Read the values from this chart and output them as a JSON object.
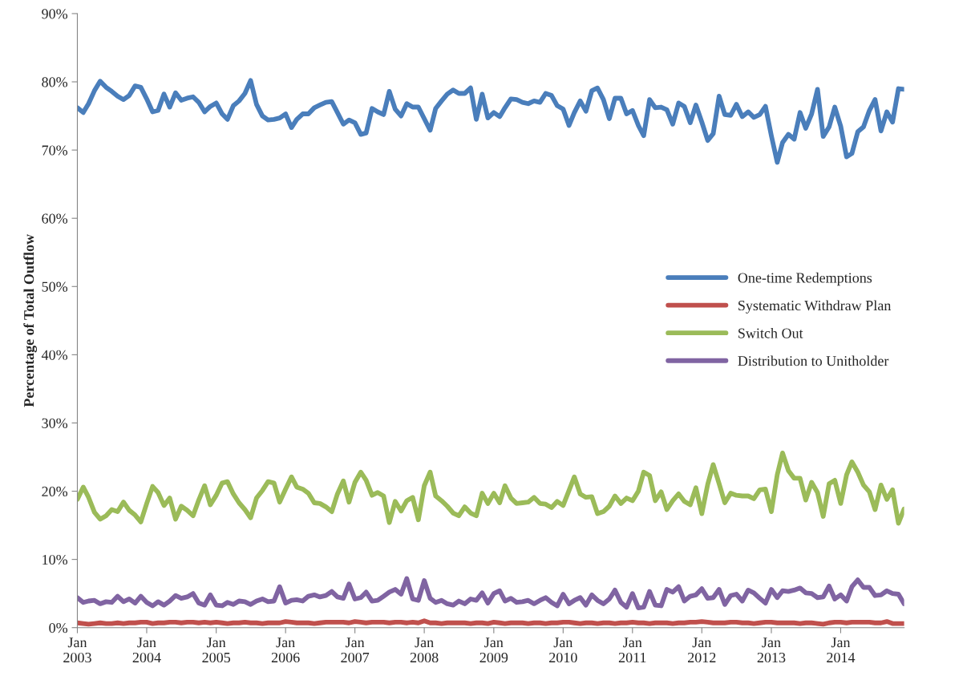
{
  "chart_data": {
    "type": "line",
    "ylabel": "Percentage of Total Outflow",
    "x": [
      "2003-01",
      "2003-02",
      "2003-03",
      "2003-04",
      "2003-05",
      "2003-06",
      "2003-07",
      "2003-08",
      "2003-09",
      "2003-10",
      "2003-11",
      "2003-12",
      "2004-01",
      "2004-02",
      "2004-03",
      "2004-04",
      "2004-05",
      "2004-06",
      "2004-07",
      "2004-08",
      "2004-09",
      "2004-10",
      "2004-11",
      "2004-12",
      "2005-01",
      "2005-02",
      "2005-03",
      "2005-04",
      "2005-05",
      "2005-06",
      "2005-07",
      "2005-08",
      "2005-09",
      "2005-10",
      "2005-11",
      "2005-12",
      "2006-01",
      "2006-02",
      "2006-03",
      "2006-04",
      "2006-05",
      "2006-06",
      "2006-07",
      "2006-08",
      "2006-09",
      "2006-10",
      "2006-11",
      "2006-12",
      "2007-01",
      "2007-02",
      "2007-03",
      "2007-04",
      "2007-05",
      "2007-06",
      "2007-07",
      "2007-08",
      "2007-09",
      "2007-10",
      "2007-11",
      "2007-12",
      "2008-01",
      "2008-02",
      "2008-03",
      "2008-04",
      "2008-05",
      "2008-06",
      "2008-07",
      "2008-08",
      "2008-09",
      "2008-10",
      "2008-11",
      "2008-12",
      "2009-01",
      "2009-02",
      "2009-03",
      "2009-04",
      "2009-05",
      "2009-06",
      "2009-07",
      "2009-08",
      "2009-09",
      "2009-10",
      "2009-11",
      "2009-12",
      "2010-01",
      "2010-02",
      "2010-03",
      "2010-04",
      "2010-05",
      "2010-06",
      "2010-07",
      "2010-08",
      "2010-09",
      "2010-10",
      "2010-11",
      "2010-12",
      "2011-01",
      "2011-02",
      "2011-03",
      "2011-04",
      "2011-05",
      "2011-06",
      "2011-07",
      "2011-08",
      "2011-09",
      "2011-10",
      "2011-11",
      "2011-12",
      "2012-01",
      "2012-02",
      "2012-03",
      "2012-04",
      "2012-05",
      "2012-06",
      "2012-07",
      "2012-08",
      "2012-09",
      "2012-10",
      "2012-11",
      "2012-12",
      "2013-01",
      "2013-02",
      "2013-03",
      "2013-04",
      "2013-05",
      "2013-06",
      "2013-07",
      "2013-08",
      "2013-09",
      "2013-10",
      "2013-11",
      "2013-12",
      "2014-01",
      "2014-02",
      "2014-03",
      "2014-04",
      "2014-05",
      "2014-06",
      "2014-07",
      "2014-08",
      "2014-09",
      "2014-10",
      "2014-11",
      "2014-12"
    ],
    "xlim": [
      "2003-01",
      "2014-12"
    ],
    "xticks": [
      {
        "value": "2003-01",
        "label": "Jan\n2003"
      },
      {
        "value": "2004-01",
        "label": "Jan\n2004"
      },
      {
        "value": "2005-01",
        "label": "Jan\n2005"
      },
      {
        "value": "2006-01",
        "label": "Jan\n2006"
      },
      {
        "value": "2007-01",
        "label": "Jan\n2007"
      },
      {
        "value": "2008-01",
        "label": "Jan\n2008"
      },
      {
        "value": "2009-01",
        "label": "Jan\n2009"
      },
      {
        "value": "2010-01",
        "label": "Jan\n2010"
      },
      {
        "value": "2011-01",
        "label": "Jan\n2011"
      },
      {
        "value": "2012-01",
        "label": "Jan\n2012"
      },
      {
        "value": "2013-01",
        "label": "Jan\n2013"
      },
      {
        "value": "2014-01",
        "label": "Jan\n2014"
      }
    ],
    "ylim": [
      0,
      90
    ],
    "yticks": [
      {
        "value": 0,
        "label": "0%"
      },
      {
        "value": 10,
        "label": "10%"
      },
      {
        "value": 20,
        "label": "20%"
      },
      {
        "value": 30,
        "label": "30%"
      },
      {
        "value": 40,
        "label": "40%"
      },
      {
        "value": 50,
        "label": "50%"
      },
      {
        "value": 60,
        "label": "60%"
      },
      {
        "value": 70,
        "label": "70%"
      },
      {
        "value": 80,
        "label": "80%"
      },
      {
        "value": 90,
        "label": "90%"
      }
    ],
    "grid": false,
    "legend": "right",
    "marker": "none",
    "series": [
      {
        "name": "One-time Redemptions",
        "color": "#4a7ebb",
        "line_style": "solid",
        "values": [
          76.2,
          75.5,
          76.8,
          78.7,
          80.1,
          79.2,
          78.6,
          77.9,
          77.4,
          78.0,
          79.4,
          79.2,
          77.5,
          75.6,
          75.8,
          78.2,
          76.3,
          78.4,
          77.3,
          77.6,
          77.8,
          77.0,
          75.6,
          76.4,
          76.9,
          75.3,
          74.5,
          76.5,
          77.2,
          78.3,
          80.2,
          76.7,
          75.0,
          74.4,
          74.5,
          74.7,
          75.3,
          73.3,
          74.5,
          75.3,
          75.3,
          76.2,
          76.6,
          77.0,
          77.1,
          75.5,
          73.8,
          74.4,
          74.0,
          72.3,
          72.5,
          76.1,
          75.6,
          75.2,
          78.6,
          76.0,
          75.0,
          76.8,
          76.3,
          76.3,
          74.6,
          72.9,
          76.1,
          77.2,
          78.2,
          78.8,
          78.3,
          78.3,
          79.1,
          74.5,
          78.2,
          74.7,
          75.5,
          74.9,
          76.2,
          77.5,
          77.4,
          77.0,
          76.8,
          77.2,
          77.0,
          78.3,
          78.0,
          76.5,
          76.0,
          73.6,
          75.5,
          77.2,
          75.7,
          78.7,
          79.1,
          77.4,
          74.6,
          77.6,
          77.6,
          75.3,
          75.8,
          73.6,
          72.1,
          77.4,
          76.2,
          76.3,
          75.9,
          73.8,
          76.9,
          76.4,
          74.0,
          76.6,
          74.1,
          71.4,
          72.4,
          77.9,
          75.2,
          75.1,
          76.7,
          74.9,
          75.6,
          74.8,
          75.2,
          76.4,
          72.1,
          68.2,
          71.1,
          72.3,
          71.6,
          75.5,
          73.2,
          75.3,
          78.9,
          72.0,
          73.4,
          76.3,
          73.5,
          69.0,
          69.5,
          72.7,
          73.4,
          75.8,
          77.4,
          72.8,
          75.6,
          74.1,
          79.0,
          78.9
        ]
      },
      {
        "name": "Systematic Withdraw Plan",
        "color": "#c0504d",
        "line_style": "solid",
        "values": [
          0.7,
          0.6,
          0.5,
          0.6,
          0.7,
          0.6,
          0.6,
          0.7,
          0.6,
          0.7,
          0.7,
          0.8,
          0.8,
          0.6,
          0.7,
          0.7,
          0.8,
          0.8,
          0.7,
          0.8,
          0.8,
          0.7,
          0.8,
          0.7,
          0.8,
          0.7,
          0.6,
          0.7,
          0.7,
          0.8,
          0.7,
          0.7,
          0.6,
          0.7,
          0.7,
          0.7,
          0.9,
          0.8,
          0.7,
          0.7,
          0.7,
          0.6,
          0.7,
          0.8,
          0.8,
          0.8,
          0.8,
          0.7,
          0.9,
          0.8,
          0.7,
          0.8,
          0.8,
          0.8,
          0.7,
          0.8,
          0.8,
          0.7,
          0.8,
          0.7,
          1.0,
          0.7,
          0.7,
          0.6,
          0.7,
          0.7,
          0.7,
          0.7,
          0.6,
          0.7,
          0.7,
          0.6,
          0.8,
          0.7,
          0.6,
          0.7,
          0.7,
          0.7,
          0.6,
          0.7,
          0.7,
          0.6,
          0.7,
          0.7,
          0.8,
          0.8,
          0.7,
          0.6,
          0.7,
          0.7,
          0.6,
          0.7,
          0.7,
          0.6,
          0.7,
          0.7,
          0.8,
          0.7,
          0.7,
          0.6,
          0.7,
          0.7,
          0.7,
          0.6,
          0.7,
          0.7,
          0.8,
          0.8,
          0.9,
          0.8,
          0.7,
          0.7,
          0.7,
          0.8,
          0.8,
          0.7,
          0.7,
          0.6,
          0.7,
          0.8,
          0.8,
          0.7,
          0.7,
          0.7,
          0.7,
          0.6,
          0.7,
          0.7,
          0.6,
          0.5,
          0.7,
          0.8,
          0.8,
          0.7,
          0.8,
          0.8,
          0.8,
          0.8,
          0.7,
          0.7,
          0.9,
          0.6,
          0.6,
          0.6
        ]
      },
      {
        "name": "Switch Out",
        "color": "#9bbb59",
        "line_style": "solid",
        "values": [
          18.8,
          20.6,
          19.1,
          16.9,
          15.9,
          16.4,
          17.3,
          17.0,
          18.4,
          17.2,
          16.5,
          15.5,
          18.2,
          20.7,
          19.8,
          17.9,
          19.0,
          15.9,
          17.8,
          17.2,
          16.4,
          18.7,
          20.8,
          18.0,
          19.4,
          21.2,
          21.4,
          19.6,
          18.3,
          17.3,
          16.1,
          19.0,
          20.1,
          21.4,
          21.2,
          18.4,
          20.3,
          22.1,
          20.6,
          20.3,
          19.7,
          18.3,
          18.2,
          17.7,
          17.0,
          19.6,
          21.5,
          18.4,
          21.3,
          22.8,
          21.6,
          19.4,
          19.8,
          19.3,
          15.4,
          18.5,
          17.1,
          18.6,
          19.1,
          15.8,
          20.8,
          22.8,
          19.3,
          18.6,
          17.8,
          16.8,
          16.4,
          17.7,
          16.8,
          16.4,
          19.7,
          18.2,
          19.7,
          18.3,
          20.8,
          19.0,
          18.2,
          18.3,
          18.4,
          19.1,
          18.2,
          18.1,
          17.6,
          18.5,
          17.9,
          20.1,
          22.1,
          19.6,
          19.1,
          19.2,
          16.7,
          17.0,
          17.8,
          19.3,
          18.2,
          19.0,
          18.6,
          20.0,
          22.8,
          22.3,
          18.6,
          19.9,
          17.3,
          18.6,
          19.6,
          18.5,
          18.0,
          20.5,
          16.7,
          21.0,
          23.9,
          21.1,
          18.3,
          19.7,
          19.4,
          19.3,
          19.3,
          18.9,
          20.2,
          20.3,
          17.0,
          22.4,
          25.6,
          23.0,
          21.9,
          21.9,
          18.7,
          21.3,
          19.8,
          16.3,
          21.1,
          21.6,
          18.2,
          22.4,
          24.3,
          22.8,
          20.9,
          19.9,
          17.3,
          20.9,
          18.8,
          20.2,
          15.3,
          17.4
        ]
      },
      {
        "name": "Distribution to Unitholder",
        "color": "#8064a2",
        "line_style": "solid",
        "values": [
          4.4,
          3.7,
          3.9,
          4.0,
          3.5,
          3.8,
          3.7,
          4.6,
          3.8,
          4.2,
          3.6,
          4.6,
          3.7,
          3.2,
          3.8,
          3.3,
          3.9,
          4.7,
          4.3,
          4.5,
          5.0,
          3.6,
          3.3,
          4.8,
          3.3,
          3.2,
          3.7,
          3.4,
          3.9,
          3.8,
          3.4,
          3.9,
          4.2,
          3.8,
          3.9,
          6.0,
          3.6,
          4.0,
          4.1,
          3.9,
          4.6,
          4.8,
          4.5,
          4.7,
          5.3,
          4.5,
          4.3,
          6.4,
          4.2,
          4.4,
          5.2,
          3.9,
          4.0,
          4.6,
          5.2,
          5.6,
          4.9,
          7.2,
          4.2,
          4.0,
          6.9,
          4.3,
          3.7,
          4.0,
          3.5,
          3.3,
          3.9,
          3.5,
          4.2,
          4.0,
          5.1,
          3.6,
          5.0,
          5.4,
          3.9,
          4.3,
          3.7,
          3.8,
          4.0,
          3.5,
          4.0,
          4.4,
          3.7,
          3.2,
          4.9,
          3.5,
          4.0,
          4.4,
          3.3,
          4.8,
          4.0,
          3.5,
          4.2,
          5.5,
          3.7,
          3.0,
          5.0,
          2.9,
          3.0,
          5.3,
          3.3,
          3.2,
          5.6,
          5.2,
          6.0,
          3.9,
          4.6,
          4.8,
          5.7,
          4.3,
          4.4,
          5.6,
          3.4,
          4.7,
          4.9,
          3.9,
          5.5,
          5.1,
          4.3,
          3.6,
          5.6,
          4.4,
          5.4,
          5.3,
          5.5,
          5.8,
          5.1,
          5.0,
          4.4,
          4.5,
          6.1,
          4.2,
          4.8,
          3.9,
          6.0,
          7.0,
          5.9,
          5.9,
          4.7,
          4.8,
          5.4,
          5.0,
          4.9,
          3.5
        ]
      }
    ]
  }
}
